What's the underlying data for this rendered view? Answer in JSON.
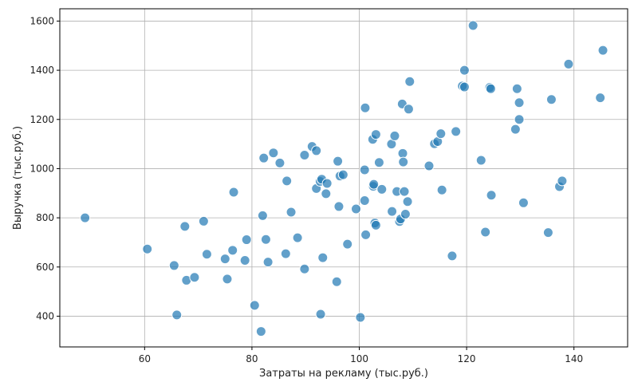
{
  "chart_data": {
    "type": "scatter",
    "title": "",
    "xlabel": "Затраты на рекламу (тыс.руб.)",
    "ylabel": "Выручка (тыс.руб.)",
    "xlim": [
      44.2,
      150
    ],
    "ylim": [
      275,
      1650
    ],
    "xticks": [
      60,
      80,
      100,
      120,
      140
    ],
    "yticks": [
      400,
      600,
      800,
      1000,
      1200,
      1400,
      1600
    ],
    "grid": true,
    "point_color": "#1f77b4",
    "points": [
      [
        48.9,
        800
      ],
      [
        60.5,
        673
      ],
      [
        65.5,
        606
      ],
      [
        66.0,
        405
      ],
      [
        67.5,
        765
      ],
      [
        67.8,
        546
      ],
      [
        69.3,
        558
      ],
      [
        71.0,
        786
      ],
      [
        71.6,
        652
      ],
      [
        75.0,
        633
      ],
      [
        75.4,
        551
      ],
      [
        76.4,
        668
      ],
      [
        76.6,
        904
      ],
      [
        78.7,
        627
      ],
      [
        79.0,
        711
      ],
      [
        80.5,
        444
      ],
      [
        81.7,
        338
      ],
      [
        82.0,
        809
      ],
      [
        82.2,
        1043
      ],
      [
        82.6,
        712
      ],
      [
        83.0,
        620
      ],
      [
        84.0,
        1064
      ],
      [
        85.2,
        1023
      ],
      [
        86.3,
        654
      ],
      [
        86.5,
        950
      ],
      [
        87.3,
        823
      ],
      [
        88.5,
        719
      ],
      [
        89.8,
        1055
      ],
      [
        89.8,
        592
      ],
      [
        91.2,
        1090
      ],
      [
        92.0,
        919
      ],
      [
        92.0,
        1073
      ],
      [
        92.7,
        948
      ],
      [
        92.8,
        408
      ],
      [
        93.0,
        957
      ],
      [
        93.2,
        638
      ],
      [
        93.8,
        898
      ],
      [
        94.0,
        940
      ],
      [
        95.8,
        540
      ],
      [
        96.0,
        1030
      ],
      [
        96.2,
        846
      ],
      [
        96.4,
        970
      ],
      [
        97.0,
        975
      ],
      [
        97.8,
        693
      ],
      [
        99.4,
        836
      ],
      [
        100.2,
        395
      ],
      [
        101.0,
        995
      ],
      [
        101.0,
        870
      ],
      [
        101.1,
        1247
      ],
      [
        101.2,
        731
      ],
      [
        102.5,
        1119
      ],
      [
        102.6,
        928
      ],
      [
        102.7,
        936
      ],
      [
        102.9,
        779
      ],
      [
        103.1,
        770
      ],
      [
        103.1,
        1139
      ],
      [
        103.7,
        1025
      ],
      [
        104.2,
        916
      ],
      [
        106.0,
        1100
      ],
      [
        106.1,
        826
      ],
      [
        106.6,
        1133
      ],
      [
        107.0,
        907
      ],
      [
        107.5,
        785
      ],
      [
        107.7,
        795
      ],
      [
        108.0,
        1263
      ],
      [
        108.1,
        1062
      ],
      [
        108.2,
        1027
      ],
      [
        108.4,
        907
      ],
      [
        108.6,
        815
      ],
      [
        109.0,
        866
      ],
      [
        109.2,
        1242
      ],
      [
        109.4,
        1354
      ],
      [
        113.0,
        1011
      ],
      [
        114.0,
        1101
      ],
      [
        114.6,
        1110
      ],
      [
        115.2,
        1142
      ],
      [
        115.4,
        913
      ],
      [
        117.3,
        645
      ],
      [
        118.0,
        1151
      ],
      [
        119.2,
        1336
      ],
      [
        119.6,
        1400
      ],
      [
        119.6,
        1332
      ],
      [
        121.2,
        1582
      ],
      [
        122.7,
        1034
      ],
      [
        123.5,
        742
      ],
      [
        124.3,
        1330
      ],
      [
        124.5,
        1325
      ],
      [
        124.6,
        892
      ],
      [
        129.1,
        1160
      ],
      [
        129.4,
        1325
      ],
      [
        129.8,
        1268
      ],
      [
        129.8,
        1200
      ],
      [
        130.6,
        861
      ],
      [
        135.2,
        740
      ],
      [
        135.8,
        1281
      ],
      [
        137.3,
        927
      ],
      [
        137.8,
        950
      ],
      [
        139.0,
        1425
      ],
      [
        144.9,
        1288
      ],
      [
        145.4,
        1481
      ]
    ]
  }
}
